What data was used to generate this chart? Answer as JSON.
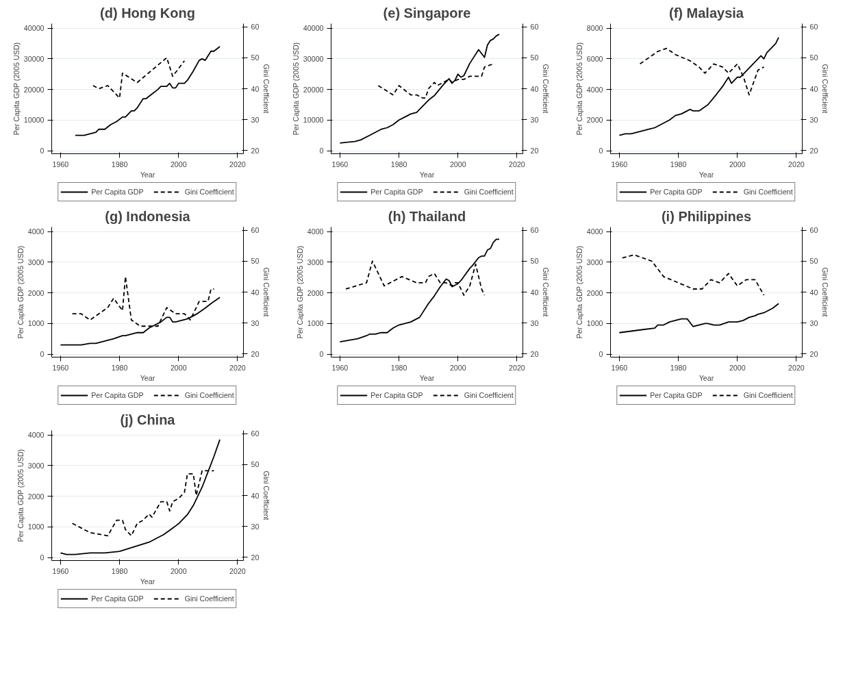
{
  "chart_data": [
    {
      "type": "line",
      "title": "(d) Hong Kong",
      "xlabel": "Year",
      "ylabel": "Per Capita GDP (2005 USD)",
      "y2label": "Gini Coefficient",
      "xlim": [
        1957,
        2022
      ],
      "xticks": [
        1960,
        1980,
        2000,
        2020
      ],
      "ylim": [
        -1000,
        41500
      ],
      "yticks": [
        0,
        10000,
        20000,
        30000,
        40000
      ],
      "y2lim": [
        19,
        61
      ],
      "y2ticks": [
        20,
        30,
        40,
        50,
        60
      ],
      "grid": "y",
      "legend": "bottom",
      "series": [
        {
          "name": "Per Capita GDP",
          "color": "#000000",
          "line_style": "solid",
          "x": [
            1965,
            1968,
            1970,
            1972,
            1973,
            1975,
            1977,
            1979,
            1981,
            1982,
            1983,
            1984,
            1985,
            1986,
            1988,
            1989,
            1991,
            1993,
            1994,
            1996,
            1997,
            1998,
            1999,
            2000,
            2002,
            2003,
            2005,
            2007,
            2008,
            2009,
            2010,
            2011,
            2012,
            2014
          ],
          "values": [
            5000,
            5000,
            5500,
            6000,
            7000,
            7000,
            8500,
            9500,
            11000,
            11000,
            12000,
            13000,
            13000,
            14000,
            17000,
            17000,
            18500,
            20000,
            21000,
            21000,
            22000,
            20500,
            20500,
            22000,
            22000,
            23000,
            26000,
            29500,
            30000,
            29500,
            31000,
            32500,
            32500,
            34000
          ]
        },
        {
          "name": "Gini Coefficient",
          "color": "#000000",
          "line_style": "dashed",
          "axis": "y2",
          "x": [
            1971,
            1973,
            1976,
            1980,
            1981,
            1986,
            1996,
            1998,
            2002
          ],
          "values": [
            41,
            40,
            41,
            37,
            45,
            42,
            50,
            44,
            49
          ]
        }
      ]
    },
    {
      "type": "line",
      "title": "(e) Singapore",
      "xlabel": "Year",
      "ylabel": "Per Capita GDP (2005 USD)",
      "y2label": "Gini Coefficient",
      "xlim": [
        1957,
        2022
      ],
      "xticks": [
        1960,
        1980,
        2000,
        2020
      ],
      "ylim": [
        -1000,
        41500
      ],
      "yticks": [
        0,
        10000,
        20000,
        30000,
        40000
      ],
      "y2lim": [
        19,
        61
      ],
      "y2ticks": [
        20,
        30,
        40,
        50,
        60
      ],
      "grid": "y",
      "legend": "bottom",
      "series": [
        {
          "name": "Per Capita GDP",
          "color": "#000000",
          "line_style": "solid",
          "x": [
            1960,
            1965,
            1967,
            1970,
            1974,
            1976,
            1978,
            1980,
            1982,
            1984,
            1986,
            1987,
            1990,
            1992,
            1995,
            1997,
            1998,
            1999,
            2000,
            2001,
            2002,
            2004,
            2007,
            2009,
            2010,
            2011,
            2012,
            2013,
            2014
          ],
          "values": [
            2500,
            3000,
            3500,
            5000,
            7000,
            7500,
            8500,
            10000,
            11000,
            12000,
            12500,
            13500,
            16500,
            18000,
            21500,
            23500,
            22000,
            23000,
            25000,
            24000,
            24500,
            28500,
            33000,
            30500,
            34500,
            36000,
            36500,
            37500,
            38000
          ]
        },
        {
          "name": "Gini Coefficient",
          "color": "#000000",
          "line_style": "dashed",
          "axis": "y2",
          "x": [
            1973,
            1978,
            1980,
            1984,
            1986,
            1988,
            1989,
            1990,
            1992,
            1993,
            1995,
            1997,
            1998,
            2000,
            2002,
            2004,
            2008,
            2009,
            2012
          ],
          "values": [
            41,
            38,
            41,
            38,
            38,
            37,
            37,
            40,
            42,
            41,
            42,
            43,
            42,
            43,
            43,
            44,
            44,
            47,
            48
          ]
        }
      ]
    },
    {
      "type": "line",
      "title": "(f) Malaysia",
      "xlabel": "Year",
      "ylabel": "Per Capita GDP (2005 USD)",
      "y2label": "Gini Coefficient",
      "xlim": [
        1957,
        2022
      ],
      "xticks": [
        1960,
        1980,
        2000,
        2020
      ],
      "ylim": [
        -200,
        8300
      ],
      "yticks": [
        0,
        2000,
        4000,
        6000,
        8000
      ],
      "y2lim": [
        19,
        61
      ],
      "y2ticks": [
        20,
        30,
        40,
        50,
        60
      ],
      "grid": "y",
      "legend": "bottom",
      "series": [
        {
          "name": "Per Capita GDP",
          "color": "#000000",
          "line_style": "solid",
          "x": [
            1960,
            1962,
            1964,
            1966,
            1968,
            1970,
            1972,
            1974,
            1975,
            1977,
            1979,
            1981,
            1983,
            1984,
            1985,
            1987,
            1990,
            1993,
            1995,
            1997,
            1998,
            1999,
            2000,
            2001,
            2003,
            2006,
            2008,
            2009,
            2010,
            2013,
            2014
          ],
          "values": [
            1000,
            1100,
            1100,
            1200,
            1300,
            1400,
            1500,
            1700,
            1800,
            2000,
            2300,
            2400,
            2600,
            2700,
            2600,
            2600,
            3000,
            3700,
            4200,
            4800,
            4400,
            4600,
            4800,
            4800,
            5200,
            5800,
            6200,
            6000,
            6400,
            7000,
            7400
          ]
        },
        {
          "name": "Gini Coefficient",
          "color": "#000000",
          "line_style": "dashed",
          "axis": "y2",
          "x": [
            1967,
            1973,
            1976,
            1979,
            1984,
            1987,
            1989,
            1992,
            1995,
            1997,
            2000,
            2002,
            2004,
            2007,
            2009
          ],
          "values": [
            48,
            52,
            53,
            51,
            49,
            47,
            45,
            48,
            47,
            45,
            48,
            44,
            38,
            46,
            47
          ]
        }
      ]
    },
    {
      "type": "line",
      "title": "(g) Indonesia",
      "xlabel": "Year",
      "ylabel": "Per Capita GDP (2005 USD)",
      "y2label": "Gini Coefficient",
      "xlim": [
        1957,
        2022
      ],
      "xticks": [
        1960,
        1980,
        2000,
        2020
      ],
      "ylim": [
        -100,
        4150
      ],
      "yticks": [
        0,
        1000,
        2000,
        3000,
        4000
      ],
      "y2lim": [
        19,
        61
      ],
      "y2ticks": [
        20,
        30,
        40,
        50,
        60
      ],
      "grid": "y",
      "legend": "bottom",
      "series": [
        {
          "name": "Per Capita GDP",
          "color": "#000000",
          "line_style": "solid",
          "x": [
            1960,
            1962,
            1965,
            1967,
            1970,
            1972,
            1974,
            1976,
            1978,
            1981,
            1982,
            1984,
            1986,
            1988,
            1990,
            1992,
            1994,
            1996,
            1997,
            1998,
            1999,
            2001,
            2003,
            2006,
            2009,
            2011,
            2014
          ],
          "values": [
            300,
            300,
            300,
            300,
            350,
            350,
            400,
            450,
            500,
            600,
            600,
            650,
            700,
            700,
            850,
            950,
            1050,
            1200,
            1200,
            1050,
            1050,
            1100,
            1150,
            1300,
            1500,
            1650,
            1850
          ]
        },
        {
          "name": "Gini Coefficient",
          "color": "#000000",
          "line_style": "dashed",
          "axis": "y2",
          "x": [
            1964,
            1967,
            1970,
            1976,
            1978,
            1981,
            1982,
            1984,
            1987,
            1993,
            1996,
            1999,
            2002,
            2004,
            2005,
            2007,
            2010,
            2011,
            2012
          ],
          "values": [
            33,
            33,
            31,
            35,
            38,
            34,
            45,
            31,
            29,
            29,
            35,
            33,
            33,
            31,
            33,
            37,
            37,
            41,
            41
          ]
        }
      ]
    },
    {
      "type": "line",
      "title": "(h) Thailand",
      "xlabel": "Year",
      "ylabel": "Per Capita GDP (2005 USD)",
      "y2label": "Gini Coefficient",
      "xlim": [
        1957,
        2022
      ],
      "xticks": [
        1960,
        1980,
        2000,
        2020
      ],
      "ylim": [
        -100,
        4150
      ],
      "yticks": [
        0,
        1000,
        2000,
        3000,
        4000
      ],
      "y2lim": [
        19,
        61
      ],
      "y2ticks": [
        20,
        30,
        40,
        50,
        60
      ],
      "grid": "y",
      "legend": "bottom",
      "series": [
        {
          "name": "Per Capita GDP",
          "color": "#000000",
          "line_style": "solid",
          "x": [
            1960,
            1963,
            1966,
            1969,
            1970,
            1972,
            1974,
            1976,
            1978,
            1980,
            1982,
            1984,
            1986,
            1987,
            1990,
            1992,
            1994,
            1996,
            1997,
            1998,
            2000,
            2001,
            2004,
            2005,
            2007,
            2008,
            2009,
            2010,
            2011,
            2012,
            2013,
            2014
          ],
          "values": [
            400,
            450,
            500,
            600,
            650,
            650,
            700,
            700,
            850,
            950,
            1000,
            1050,
            1150,
            1200,
            1650,
            1900,
            2200,
            2450,
            2400,
            2200,
            2300,
            2400,
            2800,
            2900,
            3150,
            3200,
            3200,
            3400,
            3450,
            3650,
            3750,
            3750
          ]
        },
        {
          "name": "Gini Coefficient",
          "color": "#000000",
          "line_style": "dashed",
          "axis": "y2",
          "x": [
            1962,
            1969,
            1971,
            1975,
            1981,
            1986,
            1989,
            1990,
            1992,
            1994,
            1996,
            1998,
            1999,
            2000,
            2002,
            2004,
            2006,
            2008,
            2009
          ],
          "values": [
            41,
            43,
            50,
            42,
            45,
            43,
            43,
            45,
            46,
            43,
            43,
            42,
            43,
            43,
            39,
            42,
            49,
            41,
            39
          ]
        }
      ]
    },
    {
      "type": "line",
      "title": "(i) Philippines",
      "xlabel": "Year",
      "ylabel": "Per Capita GDP (2005 USD)",
      "y2label": "Gini Coefficient",
      "xlim": [
        1957,
        2022
      ],
      "xticks": [
        1960,
        1980,
        2000,
        2020
      ],
      "ylim": [
        -100,
        4150
      ],
      "yticks": [
        0,
        1000,
        2000,
        3000,
        4000
      ],
      "y2lim": [
        19,
        61
      ],
      "y2ticks": [
        20,
        30,
        40,
        50,
        60
      ],
      "grid": "y",
      "legend": "bottom",
      "series": [
        {
          "name": "Per Capita GDP",
          "color": "#000000",
          "line_style": "solid",
          "x": [
            1960,
            1964,
            1968,
            1972,
            1973,
            1975,
            1977,
            1979,
            1981,
            1983,
            1985,
            1987,
            1989,
            1990,
            1992,
            1994,
            1997,
            1998,
            2000,
            2002,
            2004,
            2006,
            2007,
            2009,
            2010,
            2012,
            2014
          ],
          "values": [
            700,
            750,
            800,
            850,
            950,
            950,
            1050,
            1100,
            1150,
            1150,
            900,
            950,
            1000,
            1000,
            950,
            950,
            1050,
            1050,
            1050,
            1100,
            1200,
            1250,
            1300,
            1350,
            1400,
            1500,
            1650
          ]
        },
        {
          "name": "Gini Coefficient",
          "color": "#000000",
          "line_style": "dashed",
          "axis": "y2",
          "x": [
            1961,
            1965,
            1971,
            1975,
            1980,
            1985,
            1988,
            1991,
            1994,
            1997,
            2000,
            2003,
            2006,
            2009
          ],
          "values": [
            51,
            52,
            50,
            45,
            43,
            41,
            41,
            44,
            43,
            46,
            42,
            44,
            44,
            39
          ]
        }
      ]
    },
    {
      "type": "line",
      "title": "(j) China",
      "xlabel": "Year",
      "ylabel": "Per Capita GDP (2005 USD)",
      "y2label": "Gini Coefficient",
      "xlim": [
        1957,
        2022
      ],
      "xticks": [
        1960,
        1980,
        2000,
        2020
      ],
      "ylim": [
        -100,
        4150
      ],
      "yticks": [
        0,
        1000,
        2000,
        3000,
        4000
      ],
      "y2lim": [
        19,
        61
      ],
      "y2ticks": [
        20,
        30,
        40,
        50,
        60
      ],
      "grid": "y",
      "legend": "bottom",
      "series": [
        {
          "name": "Per Capita GDP",
          "color": "#000000",
          "line_style": "solid",
          "x": [
            1960,
            1962,
            1965,
            1970,
            1975,
            1980,
            1985,
            1990,
            1995,
            2000,
            2003,
            2005,
            2008,
            2010,
            2012,
            2014
          ],
          "values": [
            150,
            100,
            100,
            150,
            150,
            200,
            350,
            500,
            750,
            1100,
            1400,
            1700,
            2300,
            2800,
            3300,
            3850
          ]
        },
        {
          "name": "Gini Coefficient",
          "color": "#000000",
          "line_style": "dashed",
          "axis": "y2",
          "x": [
            1964,
            1970,
            1976,
            1979,
            1981,
            1982,
            1984,
            1985,
            1986,
            1988,
            1990,
            1991,
            1994,
            1996,
            1997,
            1998,
            2000,
            2002,
            2003,
            2005,
            2006,
            2008,
            2011,
            2012
          ],
          "values": [
            31,
            28,
            27,
            32,
            32,
            29,
            27,
            29,
            31,
            32,
            34,
            33,
            38,
            38,
            35,
            38,
            39,
            41,
            47,
            47,
            40,
            48,
            48,
            48
          ]
        }
      ]
    }
  ]
}
